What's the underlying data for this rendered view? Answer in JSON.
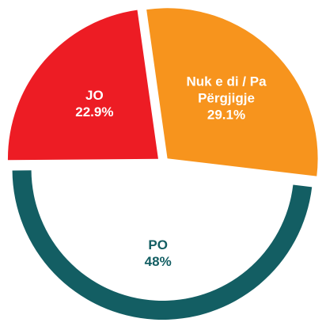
{
  "chart_data": {
    "type": "pie",
    "categories": [
      "Nuk e di / Pa Përgjigje",
      "PO",
      "JO"
    ],
    "values": [
      29.1,
      48,
      22.9
    ],
    "value_labels": [
      "29.1%",
      "48%",
      "22.9%"
    ],
    "colors": [
      "#f7941d",
      "#135e63",
      "#ed1c24"
    ],
    "label_colors": [
      "#ffffff",
      "#135e63",
      "#ffffff"
    ]
  }
}
